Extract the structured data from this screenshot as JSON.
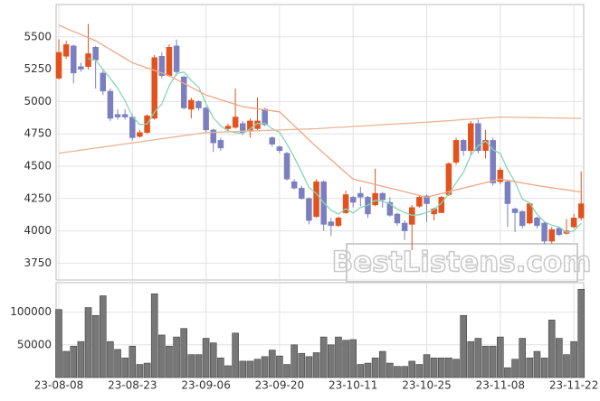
{
  "chart_data": [
    {
      "type": "candlestick",
      "ylim": [
        3620,
        5750
      ],
      "yticks": [
        3750,
        4000,
        4250,
        4500,
        4750,
        5000,
        5250,
        5500
      ],
      "grid": true,
      "up_color": "#e2521d",
      "down_color": "#7b7fc0",
      "open": [
        5180,
        5350,
        5430,
        5270,
        5270,
        5420,
        5220,
        5080,
        4900,
        4900,
        4880,
        4730,
        4760,
        4870,
        5350,
        5200,
        5430,
        5190,
        4940,
        5000,
        4950,
        4780,
        4700,
        4790,
        4800,
        4830,
        4770,
        4790,
        4940,
        4720,
        4650,
        4600,
        4380,
        4330,
        4250,
        4110,
        4380,
        4070,
        4040,
        4140,
        4260,
        4290,
        4260,
        4200,
        4290,
        4220,
        4130,
        4060,
        4050,
        4190,
        4270,
        4130,
        4140,
        4280,
        4530,
        4700,
        4620,
        4830,
        4620,
        4700,
        4380,
        4380,
        4170,
        4150,
        4060,
        4100,
        4060,
        3920,
        4020,
        3980,
        4030,
        4100
      ],
      "high": [
        5480,
        5470,
        5440,
        5300,
        5600,
        5430,
        5240,
        5100,
        4940,
        4940,
        4900,
        4780,
        4900,
        5360,
        5380,
        5440,
        5480,
        5200,
        5030,
        5010,
        4960,
        4790,
        4720,
        4830,
        5100,
        4850,
        4870,
        5030,
        4950,
        4730,
        4660,
        4610,
        4400,
        4350,
        4260,
        4400,
        4390,
        4100,
        4110,
        4310,
        4270,
        4340,
        4270,
        4480,
        4300,
        4260,
        4140,
        4080,
        4200,
        4270,
        4280,
        4180,
        4270,
        4530,
        4720,
        4710,
        4850,
        4860,
        4780,
        4720,
        4490,
        4390,
        4180,
        4160,
        4220,
        4110,
        4070,
        4030,
        4030,
        4090,
        4130,
        4460
      ],
      "low": [
        5170,
        5330,
        5140,
        5230,
        5250,
        5100,
        5050,
        4850,
        4860,
        4860,
        4700,
        4720,
        4750,
        4860,
        5180,
        5190,
        5200,
        4940,
        4870,
        4930,
        4760,
        4610,
        4620,
        4760,
        4790,
        4740,
        4720,
        4780,
        4810,
        4650,
        4600,
        4390,
        4320,
        4240,
        4050,
        4100,
        4000,
        3960,
        4030,
        4130,
        4180,
        4190,
        4100,
        4190,
        4180,
        4110,
        4040,
        3930,
        3850,
        4180,
        4070,
        4080,
        4140,
        4270,
        4510,
        4580,
        4580,
        4600,
        4560,
        4350,
        4360,
        4030,
        3990,
        4020,
        4050,
        4020,
        3900,
        3900,
        3960,
        3970,
        4020,
        4080
      ],
      "close": [
        5380,
        5440,
        5220,
        5250,
        5370,
        5320,
        5080,
        4870,
        4880,
        4880,
        4720,
        4760,
        4890,
        5340,
        5200,
        5420,
        5230,
        4950,
        5010,
        4950,
        4780,
        4680,
        4640,
        4810,
        4880,
        4760,
        4850,
        4850,
        4820,
        4670,
        4620,
        4400,
        4330,
        4250,
        4080,
        4380,
        4050,
        4040,
        4100,
        4280,
        4220,
        4260,
        4130,
        4290,
        4240,
        4120,
        4060,
        4000,
        4180,
        4260,
        4210,
        4170,
        4260,
        4520,
        4700,
        4620,
        4830,
        4620,
        4700,
        4370,
        4470,
        4210,
        4140,
        4040,
        4210,
        4040,
        3920,
        4010,
        3970,
        4000,
        4100,
        4210
      ],
      "series": [
        {
          "color": "#86d6b6",
          "values": [
            null,
            null,
            null,
            null,
            5332,
            5320,
            5248,
            5178,
            5104,
            5006,
            4886,
            4822,
            4826,
            4918,
            4982,
            5122,
            5216,
            5228,
            5162,
            5112,
            4984,
            4874,
            4812,
            4772,
            4758,
            4754,
            4788,
            4830,
            4832,
            4790,
            4762,
            4672,
            4568,
            4454,
            4336,
            4288,
            4218,
            4160,
            4130,
            4170,
            4138,
            4180,
            4198,
            4236,
            4228,
            4208,
            4168,
            4142,
            4120,
            4124,
            4142,
            4164,
            4216,
            4284,
            4372,
            4454,
            4586,
            4658,
            4694,
            4628,
            4598,
            4474,
            4378,
            4246,
            4214,
            4128,
            4070,
            4044,
            4030,
            3988,
            4000,
            4058
          ]
        },
        {
          "color": "#f0a685",
          "values": [
            5590,
            5566,
            5542,
            5518,
            5494,
            5470,
            5436,
            5402,
            5368,
            5334,
            5300,
            5280,
            5260,
            5240,
            5220,
            5200,
            5170,
            5140,
            5110,
            5080,
            5050,
            5032,
            5014,
            4996,
            4978,
            4960,
            4952,
            4944,
            4936,
            4928,
            4920,
            4866,
            4812,
            4758,
            4704,
            4650,
            4600,
            4550,
            4500,
            4450,
            4400,
            4386,
            4372,
            4358,
            4344,
            4330,
            4316,
            4302,
            4288,
            4274,
            4260,
            4274,
            4288,
            4302,
            4316,
            4330,
            4344,
            4358,
            4372,
            4386,
            4400,
            4390,
            4380,
            4370,
            4360,
            4350,
            4342,
            4333,
            4325,
            4317,
            4308,
            4300
          ]
        },
        {
          "color": "#eab596",
          "values": [
            4600,
            4608,
            4616,
            4624,
            4632,
            4640,
            4648,
            4656,
            4664,
            4672,
            4680,
            4688,
            4696,
            4704,
            4712,
            4720,
            4728,
            4736,
            4744,
            4752,
            4760,
            4762,
            4764,
            4766,
            4768,
            4770,
            4772,
            4774,
            4776,
            4778,
            4780,
            4782,
            4784,
            4786,
            4788,
            4790,
            4793,
            4797,
            4800,
            4803,
            4807,
            4810,
            4813,
            4817,
            4820,
            4823,
            4827,
            4830,
            4833,
            4837,
            4840,
            4844,
            4848,
            4852,
            4856,
            4860,
            4864,
            4868,
            4872,
            4876,
            4880,
            4879,
            4878,
            4877,
            4876,
            4875,
            4874,
            4873,
            4872,
            4871,
            4870,
            4869
          ]
        }
      ],
      "watermark": "BestListens.com"
    },
    {
      "type": "bar",
      "color": "#777777",
      "categories": [
        "23-08-08",
        null,
        null,
        null,
        null,
        null,
        null,
        null,
        null,
        null,
        "23-08-23",
        null,
        null,
        null,
        null,
        null,
        null,
        null,
        null,
        null,
        "23-09-06",
        null,
        null,
        null,
        null,
        null,
        null,
        null,
        null,
        null,
        "23-09-20",
        null,
        null,
        null,
        null,
        null,
        null,
        null,
        null,
        null,
        "23-10-11",
        null,
        null,
        null,
        null,
        null,
        null,
        null,
        null,
        null,
        "23-10-25",
        null,
        null,
        null,
        null,
        null,
        null,
        null,
        null,
        null,
        "23-11-08",
        null,
        null,
        null,
        null,
        null,
        null,
        null,
        null,
        null,
        "23-11-22",
        null
      ],
      "values": [
        104000,
        40000,
        48000,
        55000,
        107000,
        95000,
        125000,
        55000,
        43000,
        30000,
        48000,
        20000,
        22000,
        128000,
        65000,
        48000,
        62000,
        75000,
        35000,
        35000,
        60000,
        53000,
        30000,
        18000,
        68000,
        25000,
        25000,
        28000,
        32000,
        42000,
        33000,
        20000,
        50000,
        37000,
        32000,
        38000,
        62000,
        50000,
        62000,
        57000,
        58000,
        20000,
        22000,
        30000,
        40000,
        22000,
        17000,
        17000,
        25000,
        20000,
        35000,
        30000,
        30000,
        30000,
        28000,
        95000,
        55000,
        60000,
        48000,
        48000,
        62000,
        15000,
        28000,
        60000,
        30000,
        40000,
        30000,
        88000,
        60000,
        35000,
        55000,
        135000
      ],
      "ylim": [
        0,
        145000
      ],
      "yticks": [
        50000,
        100000
      ],
      "grid": true
    }
  ]
}
